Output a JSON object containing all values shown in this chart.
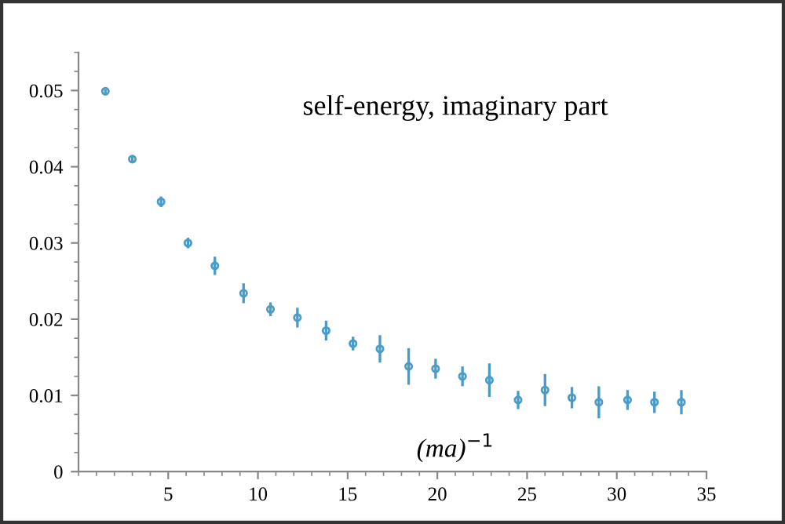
{
  "chart_data": {
    "type": "scatter",
    "title": "self-energy, imaginary part",
    "xlabel": "(ma)$^{−1}$",
    "x": [
      1.5,
      3.0,
      4.6,
      6.1,
      7.6,
      9.2,
      10.7,
      12.2,
      13.8,
      15.3,
      16.8,
      18.4,
      19.9,
      21.4,
      22.9,
      24.5,
      26.0,
      27.5,
      29.0,
      30.6,
      32.1,
      33.6
    ],
    "series": [
      {
        "color": "#4a9cc8",
        "values": [
          0.0499,
          0.041,
          0.0354,
          0.03,
          0.027,
          0.0234,
          0.0213,
          0.0202,
          0.0185,
          0.0168,
          0.0161,
          0.0138,
          0.0135,
          0.0125,
          0.012,
          0.0094,
          0.0107,
          0.0097,
          0.0091,
          0.0094,
          0.0091,
          0.0091
        ],
        "errors": [
          0.0003,
          0.0004,
          0.0007,
          0.0007,
          0.0012,
          0.0013,
          0.0009,
          0.0013,
          0.0013,
          0.0009,
          0.0018,
          0.0024,
          0.0013,
          0.0013,
          0.0022,
          0.0012,
          0.0021,
          0.0014,
          0.0021,
          0.0013,
          0.0014,
          0.0016
        ]
      }
    ],
    "xlim": [
      0,
      35
    ],
    "xticks": [
      5,
      10,
      15,
      20,
      25,
      30,
      35
    ],
    "ylim": [
      0,
      0.055
    ],
    "yticks": [
      0,
      0.01,
      0.02,
      0.03,
      0.04,
      0.05
    ],
    "marker": "circle",
    "grid": false,
    "legend": false
  }
}
